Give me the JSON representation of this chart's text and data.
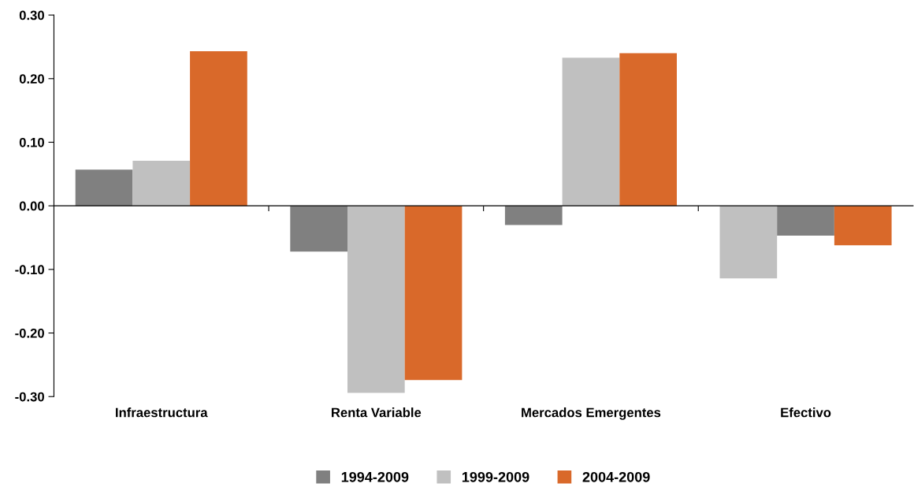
{
  "chart_data": {
    "type": "bar",
    "categories": [
      "Infraestructura",
      "Renta Variable",
      "Mercados Emergentes",
      "Efectivo"
    ],
    "series": [
      {
        "name": "1994-2009",
        "color": "#808080",
        "colors": [
          "#808080",
          "#808080",
          "#808080",
          "#c0c0c0"
        ],
        "values": [
          0.057,
          -0.072,
          -0.03,
          -0.114
        ]
      },
      {
        "name": "1999-2009",
        "color": "#c0c0c0",
        "colors": [
          "#c0c0c0",
          "#c0c0c0",
          "#c0c0c0",
          "#808080"
        ],
        "values": [
          0.071,
          -0.294,
          0.233,
          -0.047
        ]
      },
      {
        "name": "2004-2009",
        "color": "#d9692a",
        "colors": [
          "#d9692a",
          "#d9692a",
          "#d9692a",
          "#d9692a"
        ],
        "values": [
          0.243,
          -0.274,
          0.24,
          -0.062
        ]
      }
    ],
    "ylim": [
      -0.3,
      0.3
    ],
    "yticks": [
      {
        "value": -0.3,
        "label": "-0.30"
      },
      {
        "value": -0.2,
        "label": "-0.20"
      },
      {
        "value": -0.1,
        "label": "-0.10"
      },
      {
        "value": 0,
        "label": "0.00"
      },
      {
        "value": 0.1,
        "label": "0.10"
      },
      {
        "value": 0.2,
        "label": "0.20"
      },
      {
        "value": 0.3,
        "label": "0.30"
      }
    ],
    "legend": "bottom"
  }
}
